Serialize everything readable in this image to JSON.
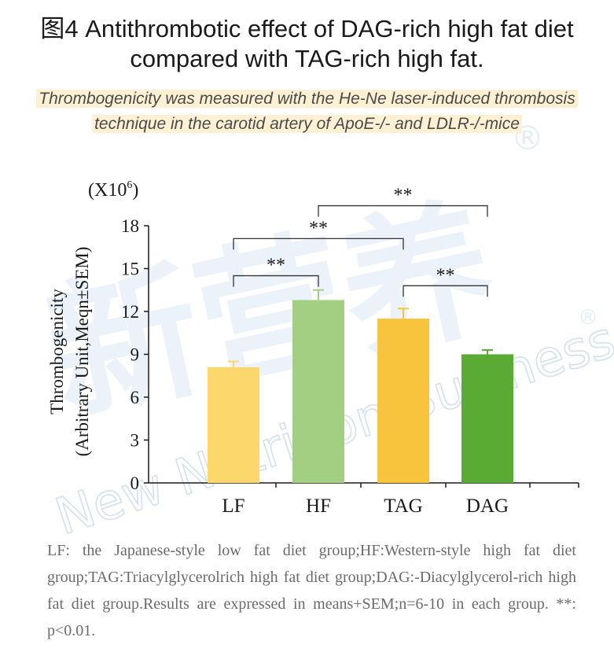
{
  "title": "图4 Antithrombotic effect of DAG-rich high fat diet compared with TAG-rich high fat.",
  "subtitle": "Thrombogenicity was measured with the He-Ne laser-induced thrombosis technique in the carotid artery of ApoE-/- and LDLR-/-mice",
  "watermark": {
    "brand": "新营养",
    "text": "New Nutrition Business",
    "mark": "®"
  },
  "chart_data": {
    "type": "bar",
    "categories": [
      "LF",
      "HF",
      "TAG",
      "DAG"
    ],
    "values": [
      8.1,
      12.8,
      11.5,
      9.0
    ],
    "errors": [
      0.4,
      0.7,
      0.7,
      0.3
    ],
    "colors": [
      "#fcd86c",
      "#a3cf82",
      "#f9c43d",
      "#5aab33"
    ],
    "ylabel_line1": "Thrombogenicity",
    "ylabel_line2": "(Arbitrary Unit,Meqn±SEM)",
    "unit_base": "(X10",
    "unit_exp": "6",
    "unit_close": ")",
    "ylim": [
      0,
      18
    ],
    "yticks": [
      "0",
      "3",
      "6",
      "9",
      "12",
      "15",
      "18"
    ],
    "grid": false,
    "significance": [
      {
        "from": 0,
        "to": 1,
        "label": "**",
        "level": 14.5
      },
      {
        "from": 0,
        "to": 2,
        "label": "**",
        "level": 17.1
      },
      {
        "from": 1,
        "to": 3,
        "label": "**",
        "level": 19.4
      },
      {
        "from": 2,
        "to": 3,
        "label": "**",
        "level": 13.8
      }
    ]
  },
  "footnote": "LF: the Japanese-style low fat diet group;HF:Western-style high fat diet group;TAG:Triacylglycerolrich high fat diet group;DAG:-Diacylglycerol-rich high fat diet group.Results are expressed in means+SEM;n=6-10 in each group. **: p<0.01."
}
